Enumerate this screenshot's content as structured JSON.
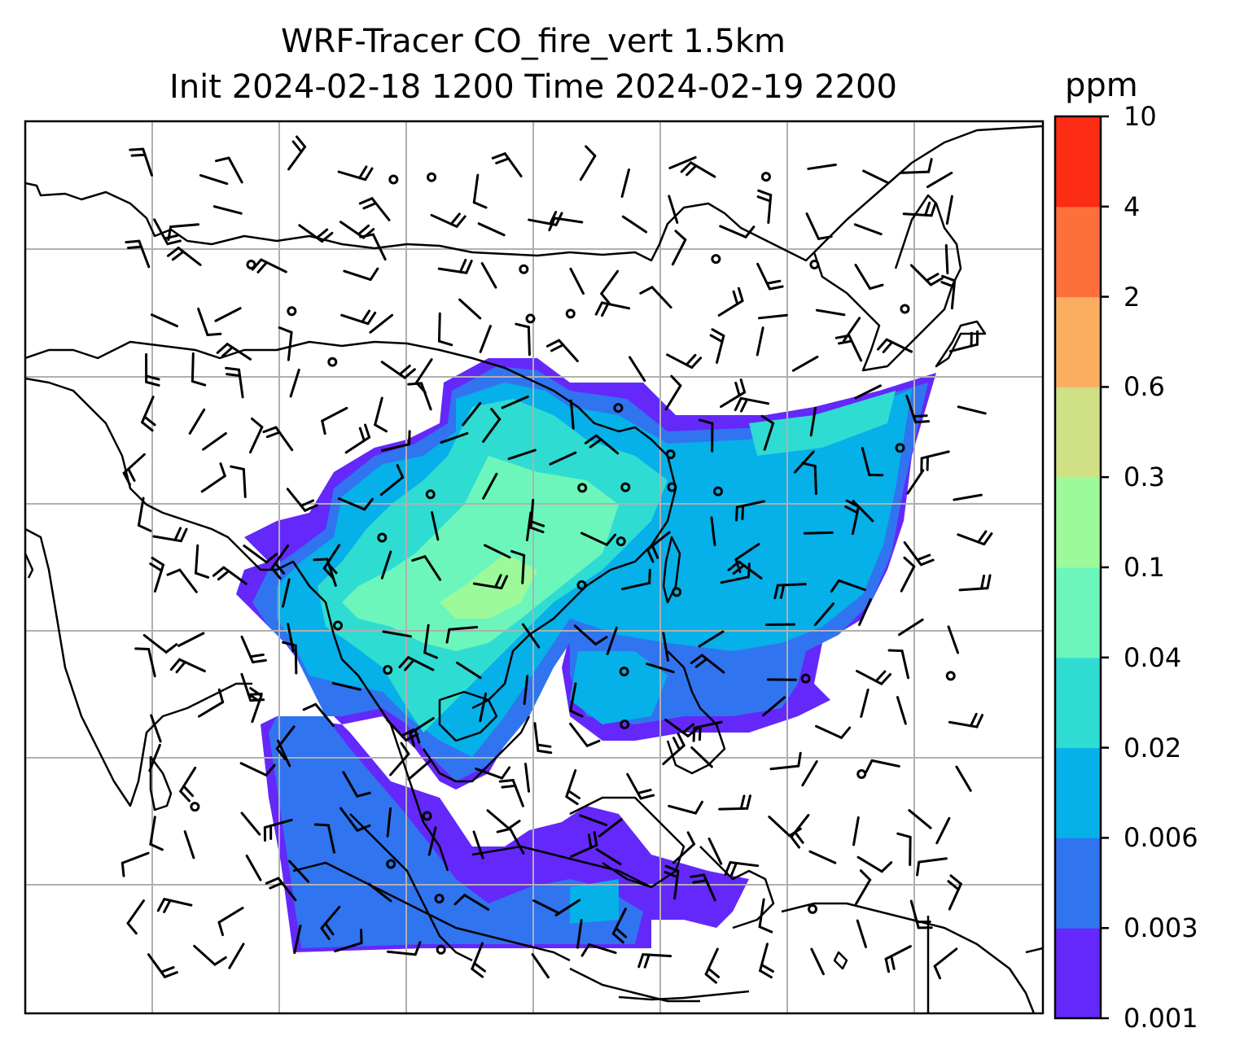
{
  "title": {
    "line1": "WRF-Tracer CO_fire_vert 1.5km",
    "line2": "Init 2024-02-18 1200 Time 2024-02-19 2200"
  },
  "colorbar": {
    "unit": "ppm",
    "levels": [
      "0.001",
      "0.003",
      "0.006",
      "0.02",
      "0.04",
      "0.1",
      "0.3",
      "0.6",
      "2",
      "4",
      "10"
    ],
    "colors": [
      "#6428fa",
      "#3074f0",
      "#06b0e8",
      "#2fdcd2",
      "#6cf6bc",
      "#9cfa9a",
      "#cfe085",
      "#fcae60",
      "#fe703b",
      "#fd2c14"
    ]
  },
  "map": {
    "gridlines": true,
    "field": "CO_fire_vert",
    "level": "1.5km",
    "overlay": "wind barbs"
  }
}
